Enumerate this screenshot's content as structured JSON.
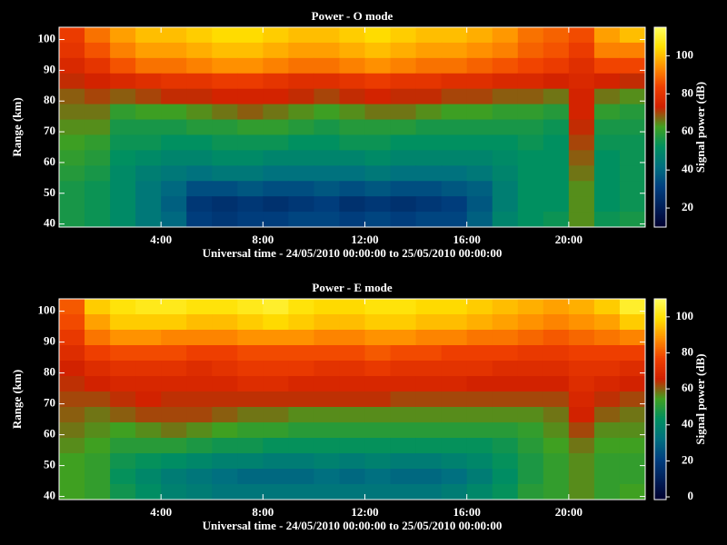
{
  "chart_data": [
    {
      "type": "heatmap",
      "title": "Power - O mode",
      "xlabel": "Universal time - 24/05/2010 00:00:00 to 25/05/2010 00:00:00",
      "ylabel": "Range (km)",
      "xlim": [
        0,
        23
      ],
      "ylim": [
        39,
        104
      ],
      "xticks": [
        {
          "value": 4,
          "label": "4:00"
        },
        {
          "value": 8,
          "label": "8:00"
        },
        {
          "value": 12,
          "label": "12:00"
        },
        {
          "value": 16,
          "label": "16:00"
        },
        {
          "value": 20,
          "label": "20:00"
        }
      ],
      "yticks": [
        40,
        50,
        60,
        70,
        80,
        90,
        100
      ],
      "xbins": [
        0,
        1,
        2,
        3,
        4,
        5,
        6,
        7,
        8,
        9,
        10,
        11,
        12,
        13,
        14,
        15,
        16,
        17,
        18,
        19,
        20,
        21,
        22,
        23
      ],
      "ybins": [
        104,
        99,
        94,
        89,
        84,
        79,
        74,
        69,
        64,
        59,
        54,
        49,
        44,
        39
      ],
      "z": [
        [
          82,
          90,
          96,
          100,
          100,
          102,
          104,
          104,
          102,
          100,
          100,
          102,
          104,
          102,
          100,
          100,
          98,
          95,
          90,
          88,
          85,
          96,
          100
        ],
        [
          80,
          86,
          92,
          96,
          96,
          98,
          100,
          100,
          98,
          96,
          96,
          98,
          100,
          98,
          96,
          96,
          94,
          92,
          88,
          86,
          82,
          92,
          92
        ],
        [
          76,
          80,
          86,
          90,
          90,
          92,
          94,
          94,
          92,
          90,
          90,
          92,
          94,
          92,
          90,
          90,
          88,
          86,
          84,
          82,
          78,
          84,
          84
        ],
        [
          72,
          74,
          76,
          78,
          80,
          80,
          82,
          82,
          80,
          78,
          78,
          80,
          82,
          80,
          80,
          78,
          78,
          76,
          76,
          74,
          76,
          74,
          72
        ],
        [
          68,
          70,
          68,
          70,
          72,
          72,
          74,
          74,
          74,
          72,
          70,
          72,
          74,
          72,
          72,
          70,
          70,
          68,
          68,
          66,
          74,
          66,
          64
        ],
        [
          66,
          66,
          60,
          62,
          62,
          64,
          66,
          68,
          66,
          64,
          62,
          64,
          66,
          66,
          64,
          62,
          62,
          60,
          60,
          58,
          74,
          60,
          58
        ],
        [
          64,
          64,
          56,
          56,
          56,
          58,
          58,
          60,
          60,
          58,
          56,
          58,
          58,
          58,
          56,
          56,
          56,
          56,
          56,
          54,
          72,
          56,
          56
        ],
        [
          62,
          60,
          54,
          54,
          52,
          52,
          54,
          54,
          54,
          52,
          52,
          54,
          54,
          52,
          52,
          52,
          52,
          52,
          54,
          52,
          70,
          54,
          54
        ],
        [
          60,
          58,
          52,
          50,
          48,
          48,
          50,
          50,
          48,
          48,
          48,
          48,
          50,
          48,
          48,
          48,
          48,
          50,
          52,
          52,
          68,
          52,
          54
        ],
        [
          58,
          56,
          50,
          46,
          44,
          42,
          44,
          44,
          42,
          42,
          42,
          42,
          44,
          42,
          42,
          42,
          44,
          48,
          52,
          52,
          66,
          52,
          54
        ],
        [
          56,
          54,
          50,
          44,
          40,
          34,
          34,
          36,
          34,
          34,
          36,
          34,
          36,
          34,
          34,
          36,
          38,
          46,
          52,
          52,
          64,
          52,
          54
        ],
        [
          56,
          54,
          50,
          44,
          38,
          28,
          26,
          28,
          26,
          28,
          30,
          26,
          28,
          26,
          28,
          30,
          36,
          46,
          52,
          52,
          64,
          52,
          54
        ],
        [
          56,
          54,
          50,
          44,
          40,
          30,
          28,
          30,
          30,
          32,
          32,
          30,
          32,
          30,
          32,
          32,
          38,
          48,
          52,
          54,
          64,
          54,
          56
        ]
      ],
      "colorbar": {
        "label": "Signal power (dB)",
        "clim": [
          10,
          115
        ],
        "ticks": [
          20,
          40,
          60,
          80,
          100
        ]
      },
      "colormap": [
        "#000030",
        "#00205a",
        "#004080",
        "#007080",
        "#009060",
        "#40a020",
        "#d02000",
        "#f04000",
        "#ff9000",
        "#ffe000",
        "#ffff60"
      ]
    },
    {
      "type": "heatmap",
      "title": "Power - E mode",
      "xlabel": "Universal time - 24/05/2010 00:00:00 to 25/05/2010 00:00:00",
      "ylabel": "Range (km)",
      "xlim": [
        0,
        23
      ],
      "ylim": [
        39,
        104
      ],
      "xticks": [
        {
          "value": 4,
          "label": "4:00"
        },
        {
          "value": 8,
          "label": "8:00"
        },
        {
          "value": 12,
          "label": "12:00"
        },
        {
          "value": 16,
          "label": "16:00"
        },
        {
          "value": 20,
          "label": "20:00"
        }
      ],
      "yticks": [
        40,
        50,
        60,
        70,
        80,
        90,
        100
      ],
      "xbins": [
        0,
        1,
        2,
        3,
        4,
        5,
        6,
        7,
        8,
        9,
        10,
        11,
        12,
        13,
        14,
        15,
        16,
        17,
        18,
        19,
        20,
        21,
        22,
        23
      ],
      "ybins": [
        104,
        99,
        94,
        89,
        84,
        79,
        74,
        69,
        64,
        59,
        54,
        49,
        44,
        39
      ],
      "z": [
        [
          80,
          96,
          100,
          102,
          102,
          100,
          100,
          102,
          104,
          100,
          98,
          98,
          100,
          100,
          98,
          98,
          96,
          94,
          92,
          90,
          92,
          96,
          104
        ],
        [
          78,
          90,
          96,
          96,
          96,
          94,
          94,
          96,
          98,
          96,
          94,
          94,
          96,
          96,
          94,
          94,
          92,
          90,
          88,
          86,
          88,
          90,
          96
        ],
        [
          74,
          84,
          88,
          88,
          86,
          86,
          86,
          88,
          88,
          88,
          86,
          86,
          88,
          88,
          86,
          86,
          84,
          84,
          82,
          80,
          82,
          84,
          86
        ],
        [
          70,
          76,
          78,
          78,
          78,
          76,
          76,
          78,
          78,
          78,
          78,
          78,
          80,
          78,
          78,
          76,
          76,
          76,
          74,
          74,
          76,
          76,
          76
        ],
        [
          66,
          70,
          72,
          72,
          72,
          70,
          72,
          74,
          74,
          74,
          72,
          72,
          74,
          72,
          72,
          72,
          72,
          70,
          70,
          70,
          72,
          72,
          70
        ],
        [
          64,
          66,
          68,
          68,
          68,
          68,
          68,
          70,
          70,
          68,
          68,
          68,
          68,
          68,
          68,
          68,
          66,
          66,
          66,
          66,
          70,
          68,
          66
        ],
        [
          62,
          62,
          64,
          66,
          64,
          64,
          64,
          64,
          64,
          64,
          64,
          64,
          64,
          62,
          62,
          62,
          62,
          62,
          62,
          62,
          68,
          64,
          62
        ],
        [
          60,
          58,
          60,
          62,
          62,
          62,
          60,
          58,
          58,
          56,
          56,
          56,
          56,
          56,
          56,
          56,
          56,
          56,
          56,
          58,
          66,
          60,
          58
        ],
        [
          58,
          56,
          54,
          56,
          58,
          56,
          54,
          52,
          52,
          50,
          50,
          50,
          50,
          50,
          50,
          50,
          50,
          50,
          52,
          56,
          62,
          56,
          56
        ],
        [
          56,
          54,
          50,
          50,
          50,
          48,
          46,
          46,
          44,
          44,
          44,
          44,
          44,
          44,
          44,
          44,
          44,
          46,
          50,
          54,
          58,
          54,
          54
        ],
        [
          54,
          52,
          46,
          44,
          42,
          40,
          38,
          38,
          36,
          36,
          38,
          36,
          38,
          36,
          36,
          38,
          40,
          44,
          48,
          52,
          56,
          52,
          52
        ],
        [
          54,
          52,
          44,
          40,
          36,
          34,
          32,
          30,
          30,
          30,
          32,
          30,
          32,
          30,
          30,
          32,
          36,
          42,
          48,
          52,
          56,
          52,
          52
        ],
        [
          54,
          52,
          46,
          42,
          38,
          36,
          34,
          34,
          34,
          34,
          34,
          34,
          34,
          34,
          34,
          36,
          40,
          44,
          50,
          52,
          56,
          52,
          54
        ]
      ],
      "colorbar": {
        "label": "Signal power (dB)",
        "clim": [
          -1.5,
          110
        ],
        "ticks": [
          0,
          20,
          40,
          60,
          80,
          100
        ]
      },
      "colormap": [
        "#000030",
        "#00205a",
        "#004080",
        "#007080",
        "#009060",
        "#40a020",
        "#d02000",
        "#f04000",
        "#ff9000",
        "#ffe000",
        "#ffff60"
      ]
    }
  ]
}
